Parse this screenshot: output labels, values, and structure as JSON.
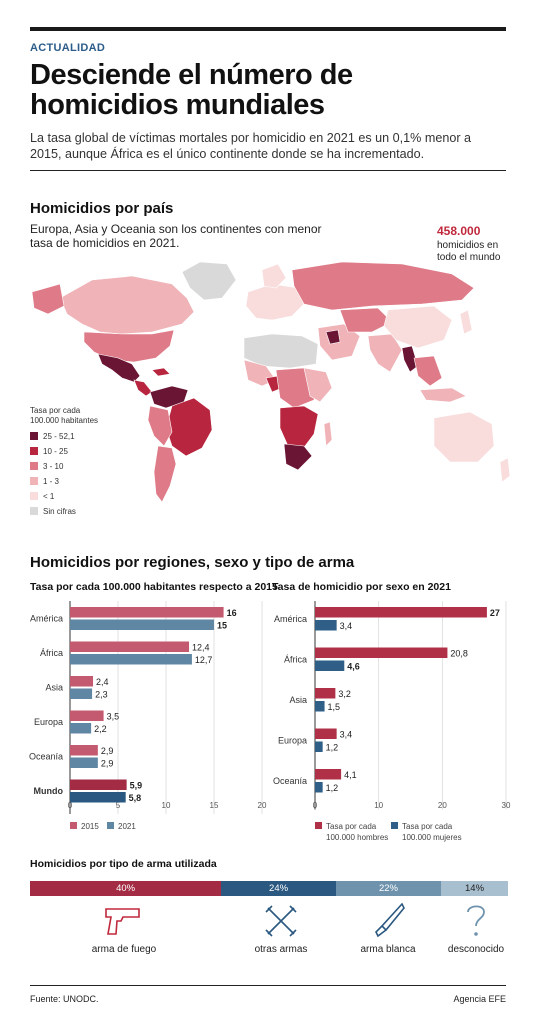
{
  "header": {
    "kicker": "ACTUALIDAD",
    "title": "Desciende el número de homicidios mundiales",
    "subtitle": "La tasa global de víctimas mortales por homicidio en 2021 es un 0,1% menor a 2015, aunque África es el único continente donde se ha incrementado."
  },
  "map_section": {
    "title": "Homicidios por país",
    "lead": "Europa, Asia y Oceania son los continentes con menor tasa de homicidios en 2021.",
    "total_value": "458.000",
    "total_label": "homicidios en todo el mundo",
    "legend_title": "Tasa por cada 100.000 habitantes",
    "legend": [
      {
        "label": "25 - 52,1",
        "color": "#6b1535"
      },
      {
        "label": "10 - 25",
        "color": "#b8253f"
      },
      {
        "label": "3 - 10",
        "color": "#df7b88"
      },
      {
        "label": "1 - 3",
        "color": "#efb3b8"
      },
      {
        "label": "< 1",
        "color": "#f9dcdc"
      },
      {
        "label": "Sin cifras",
        "color": "#d9d9d9"
      }
    ]
  },
  "regions_section": {
    "title": "Homicidios por regiones, sexo y tipo de arma"
  },
  "chart_data": [
    {
      "type": "bar",
      "orientation": "horizontal",
      "title": "Tasa por cada 100.000 habitantes respecto a 2015",
      "categories": [
        "América",
        "África",
        "Asia",
        "Europa",
        "Oceanía",
        "Mundo"
      ],
      "series": [
        {
          "name": "2015",
          "color": "#c45a6f",
          "values": [
            16,
            12.4,
            2.4,
            3.5,
            2.9,
            5.9
          ],
          "labels": [
            "16",
            "12,4",
            "2,4",
            "3,5",
            "2,9",
            "5,9"
          ]
        },
        {
          "name": "2021",
          "color": "#5f86a3",
          "values": [
            15,
            12.7,
            2.3,
            2.2,
            2.9,
            5.8
          ],
          "labels": [
            "15",
            "12,7",
            "2,3",
            "2,2",
            "2,9",
            "5,8"
          ]
        }
      ],
      "xlim": [
        0,
        20
      ],
      "xticks": [
        "0",
        "5",
        "10",
        "15",
        "20"
      ]
    },
    {
      "type": "bar",
      "orientation": "horizontal",
      "title": "Tasa de homicidio por sexo en 2021",
      "categories": [
        "América",
        "África",
        "Asia",
        "Europa",
        "Oceanía"
      ],
      "series": [
        {
          "name": "Tasa por cada 100.000 hombres",
          "color": "#b03048",
          "values": [
            27,
            20.8,
            3.2,
            3.4,
            4.1
          ],
          "labels": [
            "27",
            "20,8",
            "3,2",
            "3,4",
            "4,1"
          ]
        },
        {
          "name": "Tasa por cada 100.000 mujeres",
          "color": "#2f5f87",
          "values": [
            3.4,
            4.6,
            1.5,
            1.2,
            1.2
          ],
          "labels": [
            "3,4",
            "4,6",
            "1,5",
            "1,2",
            "1,2"
          ]
        }
      ],
      "xlim": [
        0,
        30
      ],
      "xticks": [
        "0",
        "10",
        "20",
        "30"
      ]
    },
    {
      "type": "bar",
      "orientation": "stacked-horizontal",
      "title": "Homicidios por tipo de arma utilizada",
      "categories": [
        "arma de fuego",
        "otras armas",
        "arma blanca",
        "desconocido"
      ],
      "values": [
        40,
        24,
        22,
        14
      ],
      "labels": [
        "40%",
        "24%",
        "22%",
        "14%"
      ],
      "colors": [
        "#a32b44",
        "#2a5880",
        "#6f93ad",
        "#a8bfcf"
      ]
    }
  ],
  "footer": {
    "source": "Fuente: UNODC.",
    "agency": "Agencia EFE"
  }
}
